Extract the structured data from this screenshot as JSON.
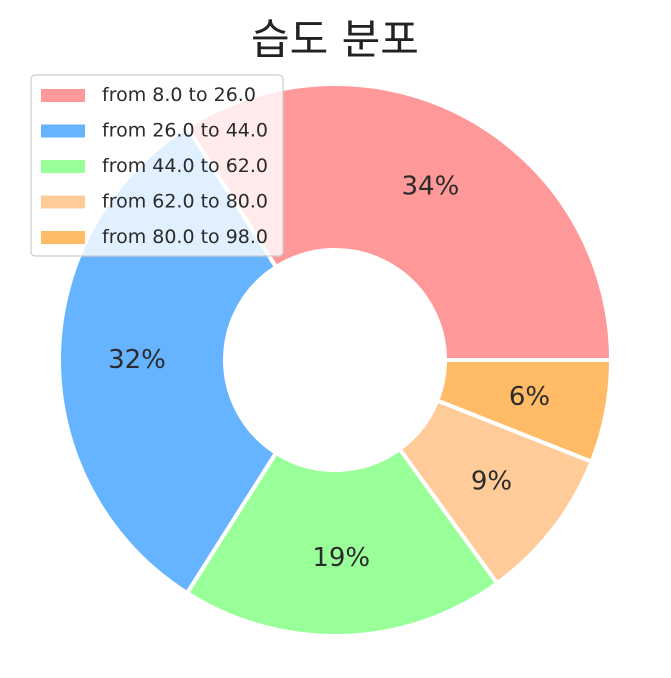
{
  "chart_data": {
    "type": "pie",
    "donut": true,
    "title": "습도 분포",
    "categories": [
      "from 8.0 to 26.0",
      "from 26.0 to 44.0",
      "from 44.0 to 62.0",
      "from 62.0 to 80.0",
      "from 80.0 to 98.0"
    ],
    "values": [
      34,
      32,
      19,
      9,
      6
    ],
    "value_labels": [
      "34%",
      "32%",
      "19%",
      "9%",
      "6%"
    ],
    "colors": [
      "#ff9999",
      "#66b3ff",
      "#99ff99",
      "#ffcc99",
      "#ffbb66"
    ],
    "start_angle_deg": 0,
    "direction": "counterclockwise",
    "legend": {
      "placement": "top-left"
    }
  }
}
